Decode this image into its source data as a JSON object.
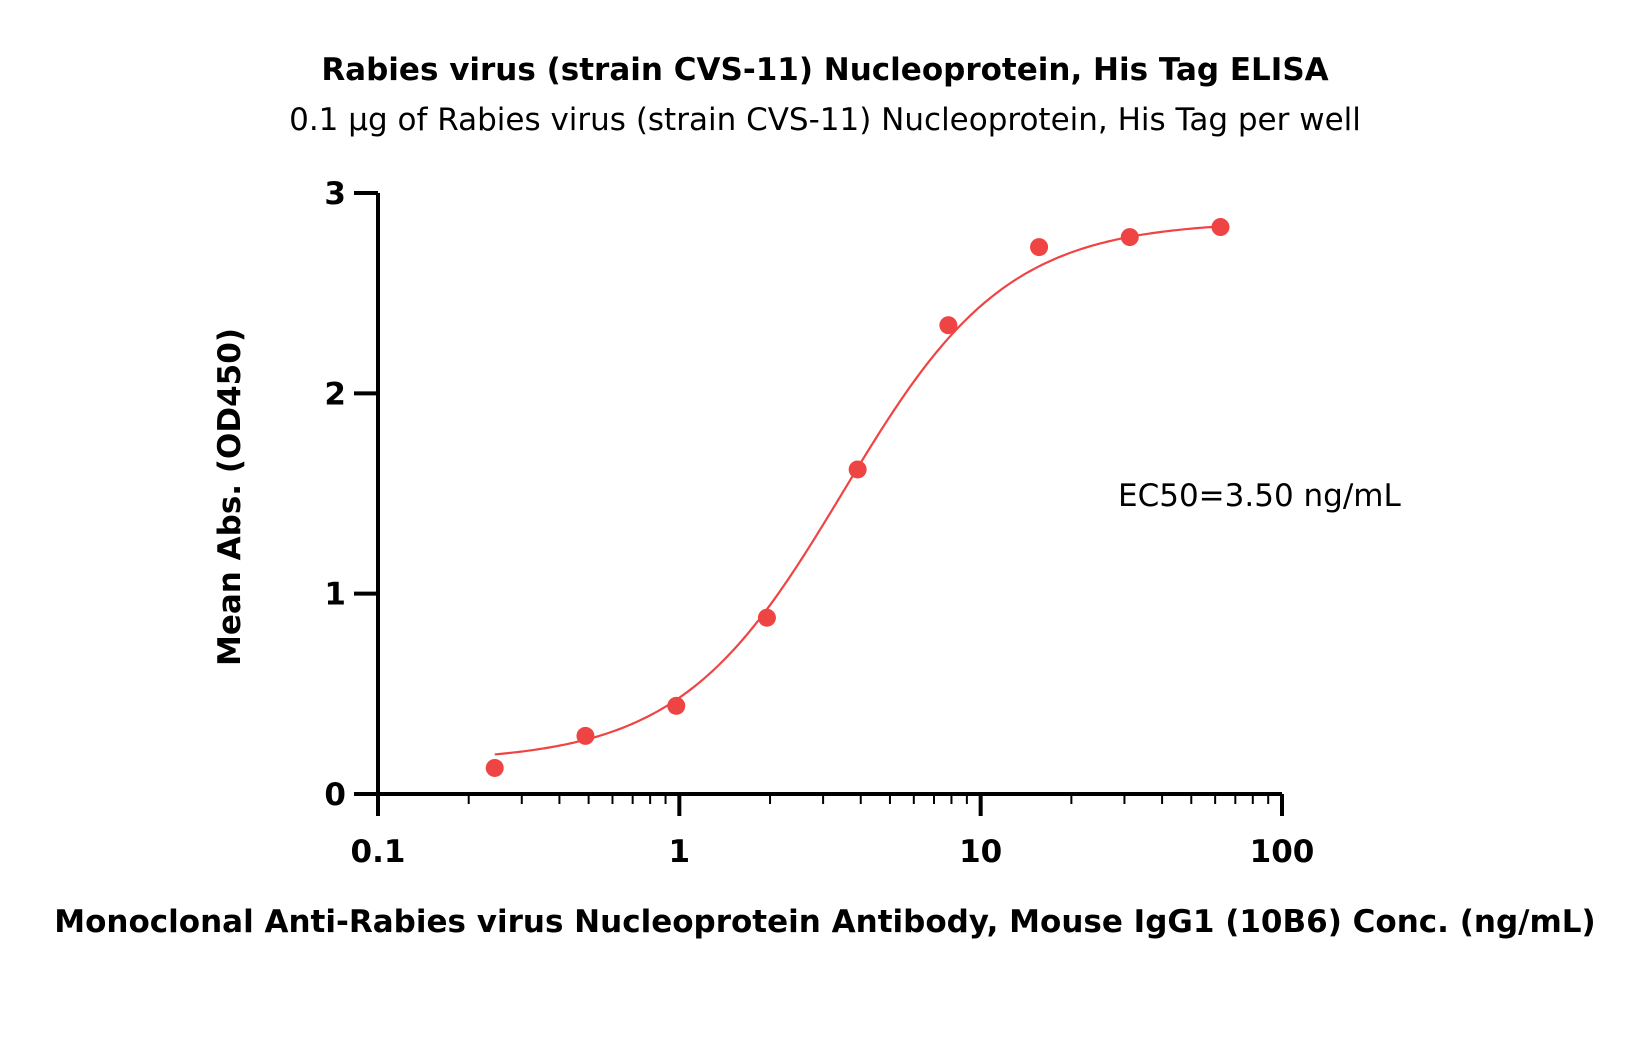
{
  "chart_data": {
    "type": "scatter",
    "title": "Rabies virus (strain CVS-11) Nucleoprotein, His Tag ELISA",
    "subtitle": "0.1 μg of Rabies virus (strain CVS-11) Nucleoprotein, His Tag per well",
    "xlabel": "Monoclonal Anti-Rabies virus Nucleoprotein Antibody, Mouse IgG1 (10B6) Conc. (ng/mL)",
    "ylabel": "Mean Abs. (OD450)",
    "x_scale": "log",
    "xlim": [
      0.1,
      100
    ],
    "ylim": [
      0,
      3
    ],
    "x_ticks": [
      "0.1",
      "1",
      "10",
      "100"
    ],
    "y_ticks": [
      "0",
      "1",
      "2",
      "3"
    ],
    "grid": false,
    "annotation": "EC50=3.50 ng/mL",
    "colors": {
      "series": "#ef4444",
      "axis": "#000000"
    },
    "series": [
      {
        "x": [
          0.244,
          0.488,
          0.977,
          1.953,
          3.906,
          7.813,
          15.625,
          31.25,
          62.5
        ],
        "y": [
          0.13,
          0.29,
          0.44,
          0.88,
          1.62,
          2.34,
          2.73,
          2.78,
          2.83
        ]
      }
    ],
    "fit": {
      "model": "4PL",
      "bottom": 0.16,
      "top": 2.86,
      "ec50": 3.5,
      "hill": 1.6
    }
  }
}
